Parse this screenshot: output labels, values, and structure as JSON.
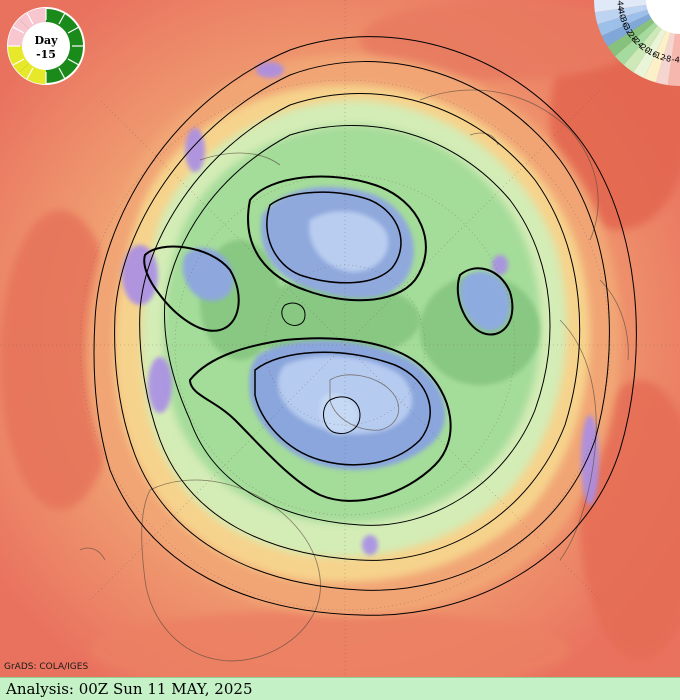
{
  "title_bar": {
    "analysis_text": "Analysis: 00Z Sun 11 MAY, 2025"
  },
  "credit": "GrADS: COLA/IGES",
  "day_dial": {
    "line1": "Day",
    "line2": "-15",
    "colors": {
      "green": "#1a8a1a",
      "yellow": "#e8e82a",
      "pink": "#f7c6cf"
    }
  },
  "color_scale": {
    "labels": [
      "-4",
      "-8",
      "-12",
      "-16",
      "-20",
      "-24",
      "-28",
      "-32",
      "-36",
      "-40",
      "-44"
    ],
    "colors": [
      "#f6b8ae",
      "#f4d5cf",
      "#fbf0c8",
      "#e8f5d8",
      "#cde9b8",
      "#a6dba0",
      "#86c27d",
      "#7fa8d8",
      "#9cc0ea",
      "#bcd4f2",
      "#dfe9f8"
    ]
  },
  "palette": {
    "warm": "#e9725f",
    "orange": "#f1a574",
    "yellow": "#f6d38c",
    "light_green": "#c9e8b0",
    "green": "#9dd796",
    "blue": "#8aa6dc",
    "light_blue": "#b9cdf0",
    "purple": "#a98ee6",
    "status_bar": "#c4f1c6"
  }
}
